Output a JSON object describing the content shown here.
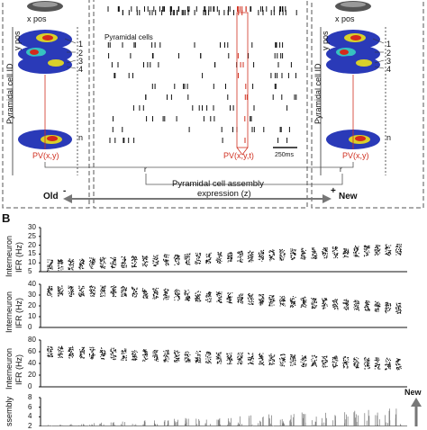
{
  "figure": {
    "panel_b_letter": "B",
    "panel_a": {
      "pos_x": "x pos",
      "pos_y": "y pos",
      "cell_axis": "Pyramidal cell ID",
      "ids_left": [
        "1",
        "2",
        "3",
        "4",
        "n"
      ],
      "ids_right": [
        "1",
        "2",
        "3",
        "4",
        "n"
      ],
      "pyramidal_cells": "Pyramidal cells",
      "pv_left": "PV(x,y)",
      "pv_mid": "PV(x,y,t)",
      "pv_right": "PV(x,y)",
      "scalebar": "250ms",
      "r_left": "r",
      "r_right": "r",
      "assembly_line1": "Pyramidal cell assembly",
      "assembly_line2": "expression (z)",
      "old": "Old",
      "old_sign": "-",
      "new": "New",
      "new_sign": "+"
    },
    "panel_b": {
      "ylabel_top": "Interneuron",
      "ylabel_bottom": "IFR (Hz)",
      "assembly_label": "ssembly",
      "new_label": "New",
      "rows": [
        {
          "ticks": [
            "30",
            "25",
            "20",
            "15",
            "10",
            "5"
          ],
          "ymax": 30,
          "base": 10,
          "trend": 0.6
        },
        {
          "ticks": [
            "40",
            "30",
            "20",
            "10",
            "0"
          ],
          "ymax": 40,
          "base": 28,
          "trend": -0.8
        },
        {
          "ticks": [
            "80",
            "60",
            "40",
            "20",
            "0"
          ],
          "ymax": 80,
          "base": 50,
          "trend": -0.45
        },
        {
          "ticks": [
            "8",
            "6",
            "4",
            "2"
          ],
          "ymax": 8,
          "base": 1,
          "trend": 0.7
        }
      ]
    },
    "colors": {
      "red": "#d03020",
      "grey": "#777777",
      "dark": "#111111"
    }
  }
}
